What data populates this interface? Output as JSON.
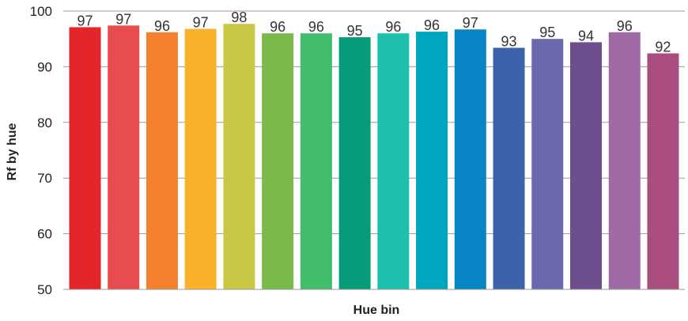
{
  "chart_data": {
    "type": "bar",
    "xlabel": "Hue bin",
    "ylabel": "Rf  by hue",
    "ylim": [
      50,
      100
    ],
    "yticks": [
      50,
      60,
      70,
      80,
      90,
      100
    ],
    "grid": true,
    "values": [
      97,
      97,
      96,
      97,
      98,
      96,
      96,
      95,
      96,
      96,
      97,
      93,
      95,
      94,
      96,
      92
    ],
    "precise_values": [
      97.1,
      97.4,
      96.2,
      96.8,
      97.7,
      96.0,
      96.0,
      95.3,
      96.0,
      96.3,
      96.7,
      93.4,
      95.0,
      94.4,
      96.2,
      92.4
    ],
    "colors": [
      "#e4262b",
      "#e74c4e",
      "#f5812e",
      "#fbb12b",
      "#c9c844",
      "#7ab94c",
      "#42bd6c",
      "#079c79",
      "#1ebfaf",
      "#00a6c0",
      "#0784c4",
      "#3c62ac",
      "#6b69ad",
      "#6b4e8b",
      "#9e69a5",
      "#a84d7e"
    ]
  }
}
